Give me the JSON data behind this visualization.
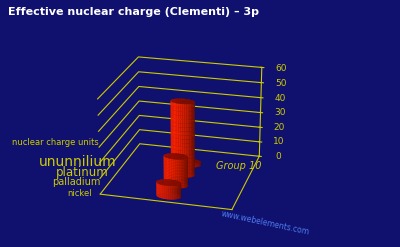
{
  "title": "Effective nuclear charge (Clementi) – 3p",
  "elements": [
    "nickel",
    "palladium",
    "platinum",
    "ununnilium"
  ],
  "values": [
    8.7,
    18.82,
    48.16,
    2.0
  ],
  "ylabel": "nuclear charge units",
  "xlabel": "Group 10",
  "ylim": [
    0,
    60
  ],
  "yticks": [
    0,
    10,
    20,
    30,
    40,
    50,
    60
  ],
  "background_color": "#10106e",
  "bar_color": "#ff2200",
  "bar_color_dark": "#bb1100",
  "bar_color_top": "#dd1100",
  "grid_color": "#cccc00",
  "text_color": "#cccc00",
  "title_color": "#ffffff",
  "website": "www.webelements.com",
  "website_color": "#5588ff"
}
